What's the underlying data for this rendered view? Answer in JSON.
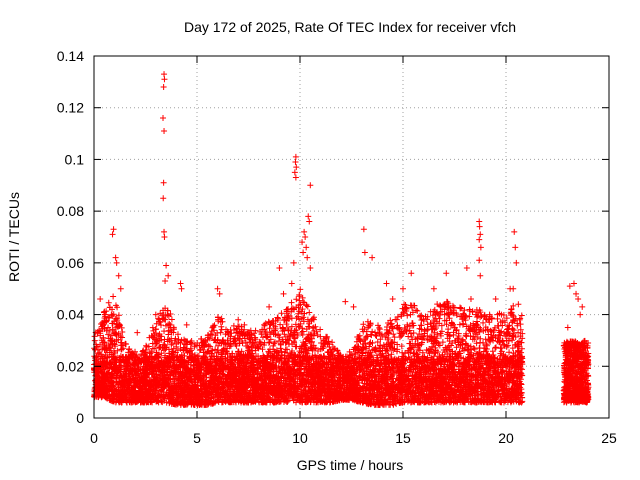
{
  "chart_data": {
    "type": "scatter",
    "title": "Day 172 of 2025, Rate Of TEC Index for receiver vfch",
    "xlabel": "GPS time / hours",
    "ylabel": "ROTI / TECUs",
    "xlim": [
      0,
      25
    ],
    "ylim": [
      0,
      0.14
    ],
    "xticks": [
      0,
      5,
      10,
      15,
      20,
      25
    ],
    "yticks": [
      0,
      0.02,
      0.04,
      0.06,
      0.08,
      0.1,
      0.12,
      0.14
    ],
    "xtick_labels": [
      "0",
      "5",
      "10",
      "15",
      "20",
      "25"
    ],
    "ytick_labels": [
      "0",
      "0.02",
      "0.04",
      "0.06",
      "0.08",
      "0.1",
      "0.12",
      "0.14"
    ],
    "grid": true,
    "marker": "+",
    "marker_color": "#ff0000",
    "series": [
      {
        "name": "ROTI",
        "band": {
          "x": [
            0.0,
            0.5,
            1.0,
            1.5,
            2.0,
            2.5,
            3.0,
            3.5,
            4.0,
            4.5,
            5.0,
            5.5,
            6.0,
            6.5,
            7.0,
            7.5,
            8.0,
            8.5,
            9.0,
            9.5,
            10.0,
            10.5,
            11.0,
            11.5,
            12.0,
            12.5,
            13.0,
            13.5,
            14.0,
            14.5,
            15.0,
            15.5,
            16.0,
            16.5,
            17.0,
            17.5,
            18.0,
            18.5,
            19.0,
            19.5,
            20.0,
            20.5,
            20.8
          ],
          "low": [
            0.008,
            0.008,
            0.006,
            0.006,
            0.006,
            0.006,
            0.006,
            0.006,
            0.005,
            0.005,
            0.005,
            0.005,
            0.006,
            0.006,
            0.006,
            0.006,
            0.006,
            0.006,
            0.006,
            0.006,
            0.006,
            0.006,
            0.006,
            0.006,
            0.007,
            0.007,
            0.006,
            0.005,
            0.005,
            0.005,
            0.006,
            0.006,
            0.006,
            0.006,
            0.006,
            0.006,
            0.006,
            0.006,
            0.006,
            0.006,
            0.006,
            0.006,
            0.006
          ],
          "high": [
            0.032,
            0.042,
            0.048,
            0.03,
            0.026,
            0.028,
            0.038,
            0.045,
            0.034,
            0.03,
            0.03,
            0.032,
            0.04,
            0.036,
            0.036,
            0.034,
            0.034,
            0.038,
            0.04,
            0.044,
            0.05,
            0.042,
            0.034,
            0.03,
            0.024,
            0.026,
            0.036,
            0.04,
            0.034,
            0.04,
            0.044,
            0.046,
            0.04,
            0.044,
            0.046,
            0.044,
            0.042,
            0.044,
            0.04,
            0.04,
            0.042,
            0.044,
            0.04
          ]
        },
        "extra_band": {
          "x_start": 22.8,
          "x_end": 24.0,
          "low": 0.006,
          "high": 0.03
        },
        "notable_points": [
          {
            "x": 0.3,
            "y": 0.046
          },
          {
            "x": 0.9,
            "y": 0.071
          },
          {
            "x": 0.95,
            "y": 0.073
          },
          {
            "x": 1.05,
            "y": 0.062
          },
          {
            "x": 1.1,
            "y": 0.06
          },
          {
            "x": 1.2,
            "y": 0.055
          },
          {
            "x": 1.3,
            "y": 0.05
          },
          {
            "x": 2.1,
            "y": 0.033
          },
          {
            "x": 3.0,
            "y": 0.04
          },
          {
            "x": 3.4,
            "y": 0.133
          },
          {
            "x": 3.42,
            "y": 0.131
          },
          {
            "x": 3.38,
            "y": 0.128
          },
          {
            "x": 3.35,
            "y": 0.116
          },
          {
            "x": 3.4,
            "y": 0.111
          },
          {
            "x": 3.38,
            "y": 0.091
          },
          {
            "x": 3.36,
            "y": 0.085
          },
          {
            "x": 3.4,
            "y": 0.072
          },
          {
            "x": 3.42,
            "y": 0.07
          },
          {
            "x": 3.5,
            "y": 0.059
          },
          {
            "x": 3.6,
            "y": 0.055
          },
          {
            "x": 3.45,
            "y": 0.053
          },
          {
            "x": 4.2,
            "y": 0.052
          },
          {
            "x": 4.25,
            "y": 0.05
          },
          {
            "x": 4.5,
            "y": 0.036
          },
          {
            "x": 6.0,
            "y": 0.05
          },
          {
            "x": 6.1,
            "y": 0.048
          },
          {
            "x": 7.0,
            "y": 0.038
          },
          {
            "x": 7.3,
            "y": 0.036
          },
          {
            "x": 8.5,
            "y": 0.043
          },
          {
            "x": 9.0,
            "y": 0.058
          },
          {
            "x": 9.2,
            "y": 0.048
          },
          {
            "x": 9.6,
            "y": 0.052
          },
          {
            "x": 9.7,
            "y": 0.06
          },
          {
            "x": 9.8,
            "y": 0.101
          },
          {
            "x": 9.78,
            "y": 0.099
          },
          {
            "x": 9.82,
            "y": 0.097
          },
          {
            "x": 9.75,
            "y": 0.095
          },
          {
            "x": 9.8,
            "y": 0.093
          },
          {
            "x": 10.1,
            "y": 0.068
          },
          {
            "x": 10.15,
            "y": 0.064
          },
          {
            "x": 10.2,
            "y": 0.072
          },
          {
            "x": 10.25,
            "y": 0.07
          },
          {
            "x": 10.3,
            "y": 0.066
          },
          {
            "x": 10.35,
            "y": 0.062
          },
          {
            "x": 10.4,
            "y": 0.078
          },
          {
            "x": 10.45,
            "y": 0.076
          },
          {
            "x": 10.5,
            "y": 0.09
          },
          {
            "x": 10.5,
            "y": 0.058
          },
          {
            "x": 12.2,
            "y": 0.045
          },
          {
            "x": 12.6,
            "y": 0.043
          },
          {
            "x": 13.1,
            "y": 0.073
          },
          {
            "x": 13.15,
            "y": 0.064
          },
          {
            "x": 13.5,
            "y": 0.062
          },
          {
            "x": 14.2,
            "y": 0.052
          },
          {
            "x": 14.5,
            "y": 0.046
          },
          {
            "x": 15.0,
            "y": 0.05
          },
          {
            "x": 15.4,
            "y": 0.056
          },
          {
            "x": 16.5,
            "y": 0.05
          },
          {
            "x": 17.1,
            "y": 0.056
          },
          {
            "x": 18.1,
            "y": 0.058
          },
          {
            "x": 18.3,
            "y": 0.046
          },
          {
            "x": 18.7,
            "y": 0.076
          },
          {
            "x": 18.72,
            "y": 0.074
          },
          {
            "x": 18.75,
            "y": 0.071
          },
          {
            "x": 18.7,
            "y": 0.069
          },
          {
            "x": 18.78,
            "y": 0.066
          },
          {
            "x": 18.7,
            "y": 0.061
          },
          {
            "x": 18.75,
            "y": 0.055
          },
          {
            "x": 19.5,
            "y": 0.046
          },
          {
            "x": 20.2,
            "y": 0.05
          },
          {
            "x": 20.4,
            "y": 0.072
          },
          {
            "x": 20.45,
            "y": 0.066
          },
          {
            "x": 20.5,
            "y": 0.06
          },
          {
            "x": 20.35,
            "y": 0.05
          },
          {
            "x": 20.6,
            "y": 0.044
          },
          {
            "x": 23.1,
            "y": 0.051
          },
          {
            "x": 23.3,
            "y": 0.052
          },
          {
            "x": 23.4,
            "y": 0.048
          },
          {
            "x": 23.5,
            "y": 0.046
          },
          {
            "x": 23.7,
            "y": 0.043
          },
          {
            "x": 23.6,
            "y": 0.04
          },
          {
            "x": 23.0,
            "y": 0.035
          }
        ]
      }
    ]
  }
}
